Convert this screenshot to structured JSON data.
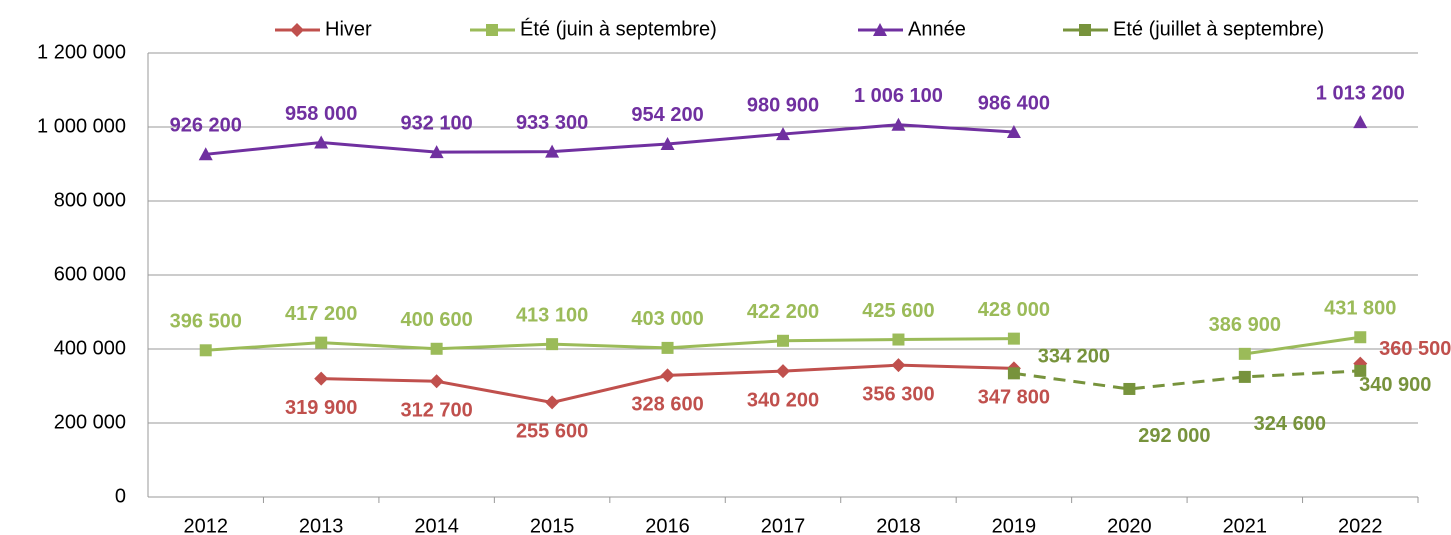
{
  "chart_data": {
    "type": "line",
    "categories": [
      "2012",
      "2013",
      "2014",
      "2015",
      "2016",
      "2017",
      "2018",
      "2019",
      "2020",
      "2021",
      "2022"
    ],
    "series": [
      {
        "name": "Hiver",
        "color": "#c0504d",
        "marker": "diamond",
        "dashed": false,
        "values": [
          null,
          319900,
          312700,
          255600,
          328600,
          340200,
          356300,
          347800,
          null,
          null,
          360500
        ],
        "value_labels": [
          null,
          "319 900",
          "312 700",
          "255 600",
          "328 600",
          "340 200",
          "356 300",
          "347 800",
          null,
          null,
          "360 500"
        ]
      },
      {
        "name": "Été (juin à septembre)",
        "color": "#9bbb59",
        "marker": "square",
        "dashed": false,
        "values": [
          396500,
          417200,
          400600,
          413100,
          403000,
          422200,
          425600,
          428000,
          null,
          386900,
          431800
        ],
        "value_labels": [
          "396 500",
          "417 200",
          "400 600",
          "413 100",
          "403 000",
          "422 200",
          "425 600",
          "428 000",
          null,
          "386 900",
          "431 800"
        ]
      },
      {
        "name": "Année",
        "color": "#7030a0",
        "marker": "triangle",
        "dashed": false,
        "values": [
          926200,
          958000,
          932100,
          933300,
          954200,
          980900,
          1006100,
          986400,
          null,
          null,
          1013200
        ],
        "value_labels": [
          "926 200",
          "958 000",
          "932 100",
          "933 300",
          "954 200",
          "980 900",
          "1 006 100",
          "986 400",
          null,
          null,
          "1 013 200"
        ]
      },
      {
        "name": "Eté (juillet à septembre)",
        "color": "#77933c",
        "marker": "square",
        "dashed": true,
        "values": [
          null,
          null,
          null,
          null,
          null,
          null,
          null,
          334200,
          292000,
          324600,
          340900
        ],
        "value_labels": [
          null,
          null,
          null,
          null,
          null,
          null,
          null,
          "334 200",
          "292 000",
          "324 600",
          "340 900"
        ]
      }
    ],
    "ylim": [
      0,
      1200000
    ],
    "yticks": [
      0,
      {
        "value": 200000,
        "label": "200 000"
      },
      {
        "value": 400000,
        "label": "400 000"
      },
      {
        "value": 600000,
        "label": "600 000"
      },
      {
        "value": 800000,
        "label": "800 000"
      },
      {
        "value": 1000000,
        "label": "1 000 000"
      },
      {
        "value": 1200000,
        "label": "1 200 000"
      }
    ],
    "grid": true,
    "legend": "top"
  }
}
